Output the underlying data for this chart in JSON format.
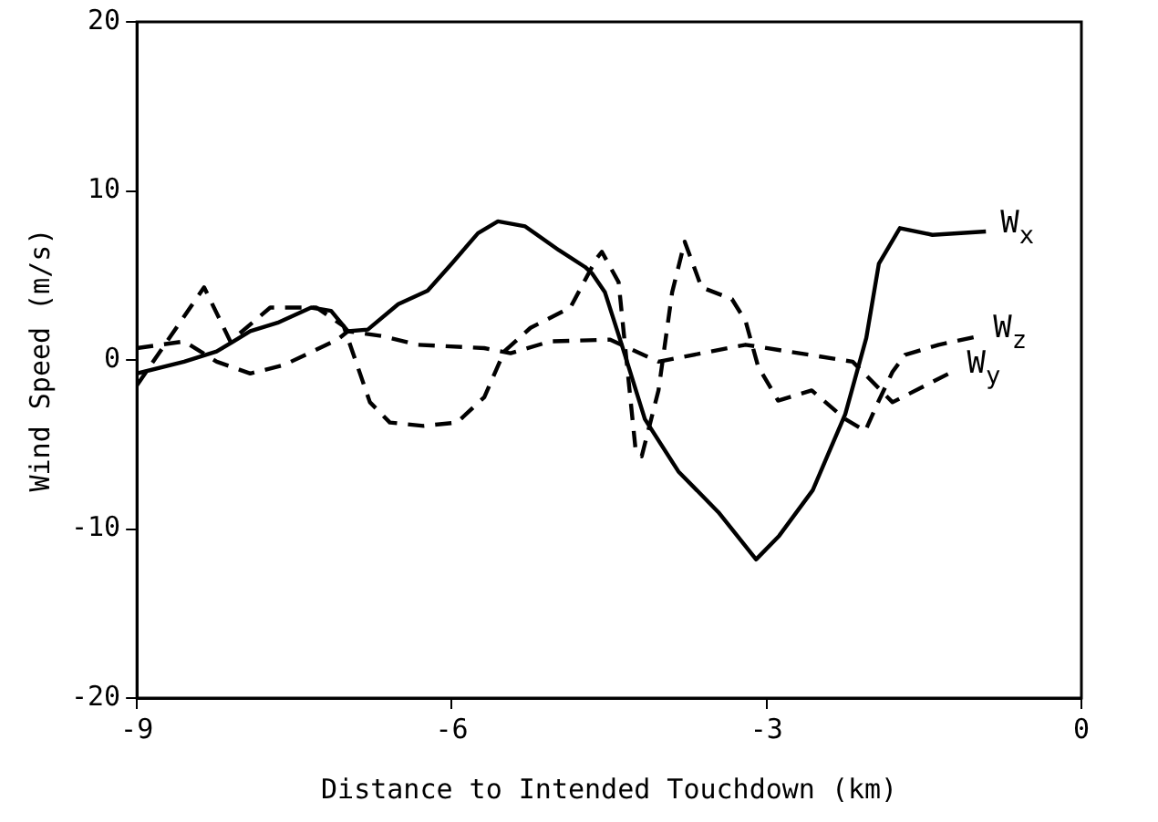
{
  "chart_data": {
    "type": "line",
    "xlabel": "Distance to Intended Touchdown (km)",
    "ylabel": "Wind Speed (m/s)",
    "xlim": [
      -9,
      0
    ],
    "xticks": [
      -9,
      -6,
      -3,
      0
    ],
    "ylim": [
      -20,
      20
    ],
    "yticks": [
      -20,
      -10,
      0,
      10,
      20
    ],
    "grid": false,
    "legend": false,
    "marker": "none",
    "series": [
      {
        "name": "W$_{x}$",
        "color": "#000000",
        "line_style": "solid",
        "x": [
          -9.0,
          -8.55,
          -8.24,
          -7.92,
          -7.66,
          -7.34,
          -7.15,
          -6.99,
          -6.8,
          -6.51,
          -6.23,
          -6.0,
          -5.75,
          -5.56,
          -5.3,
          -4.98,
          -4.73,
          -4.66,
          -4.54,
          -4.38,
          -4.16,
          -3.84,
          -3.46,
          -3.1,
          -2.88,
          -2.56,
          -2.25,
          -2.05,
          -1.93,
          -1.73,
          -1.42,
          -0.91
        ],
        "values": [
          -0.8,
          -0.1,
          0.5,
          1.7,
          2.2,
          3.1,
          2.9,
          1.7,
          1.8,
          3.3,
          4.1,
          5.7,
          7.5,
          8.2,
          7.9,
          6.5,
          5.5,
          5.1,
          4.0,
          0.9,
          -3.5,
          -6.6,
          -9.0,
          -11.8,
          -10.4,
          -7.7,
          -3.2,
          1.3,
          5.7,
          7.8,
          7.4,
          7.6
        ]
      },
      {
        "name": "W$_{z}$",
        "color": "#000000",
        "line_style": "dashed",
        "x": [
          -9.0,
          -8.36,
          -8.11,
          -7.73,
          -7.29,
          -7.03,
          -6.78,
          -6.59,
          -6.27,
          -5.95,
          -5.69,
          -5.5,
          -5.25,
          -4.87,
          -4.62,
          -4.57,
          -4.41,
          -4.25,
          -4.19,
          -4.03,
          -3.9,
          -3.78,
          -3.62,
          -3.33,
          -3.2,
          -3.08,
          -2.89,
          -2.57,
          -2.25,
          -2.06,
          -1.93,
          -1.8,
          -1.68,
          -1.36,
          -0.98
        ],
        "values": [
          -1.5,
          4.3,
          1.1,
          3.1,
          3.1,
          2.0,
          -2.5,
          -3.7,
          -3.9,
          -3.7,
          -2.2,
          0.5,
          1.9,
          3.1,
          6.0,
          6.4,
          4.6,
          -5.2,
          -5.7,
          -1.8,
          4.0,
          7.0,
          4.3,
          3.6,
          2.3,
          -0.4,
          -2.4,
          -1.8,
          -3.5,
          -4.2,
          -2.4,
          -0.7,
          0.3,
          0.9,
          1.4
        ]
      },
      {
        "name": "W$_{y}$",
        "color": "#000000",
        "line_style": "dashed",
        "x": [
          -9.0,
          -8.55,
          -8.24,
          -7.92,
          -7.6,
          -7.09,
          -6.99,
          -6.65,
          -6.33,
          -5.69,
          -5.44,
          -5.06,
          -4.49,
          -4.03,
          -3.2,
          -2.18,
          -1.8,
          -1.23
        ],
        "values": [
          0.7,
          1.1,
          -0.1,
          -0.8,
          -0.3,
          1.2,
          1.7,
          1.4,
          0.9,
          0.7,
          0.4,
          1.1,
          1.2,
          -0.1,
          0.9,
          -0.1,
          -2.5,
          -0.7
        ]
      }
    ]
  }
}
